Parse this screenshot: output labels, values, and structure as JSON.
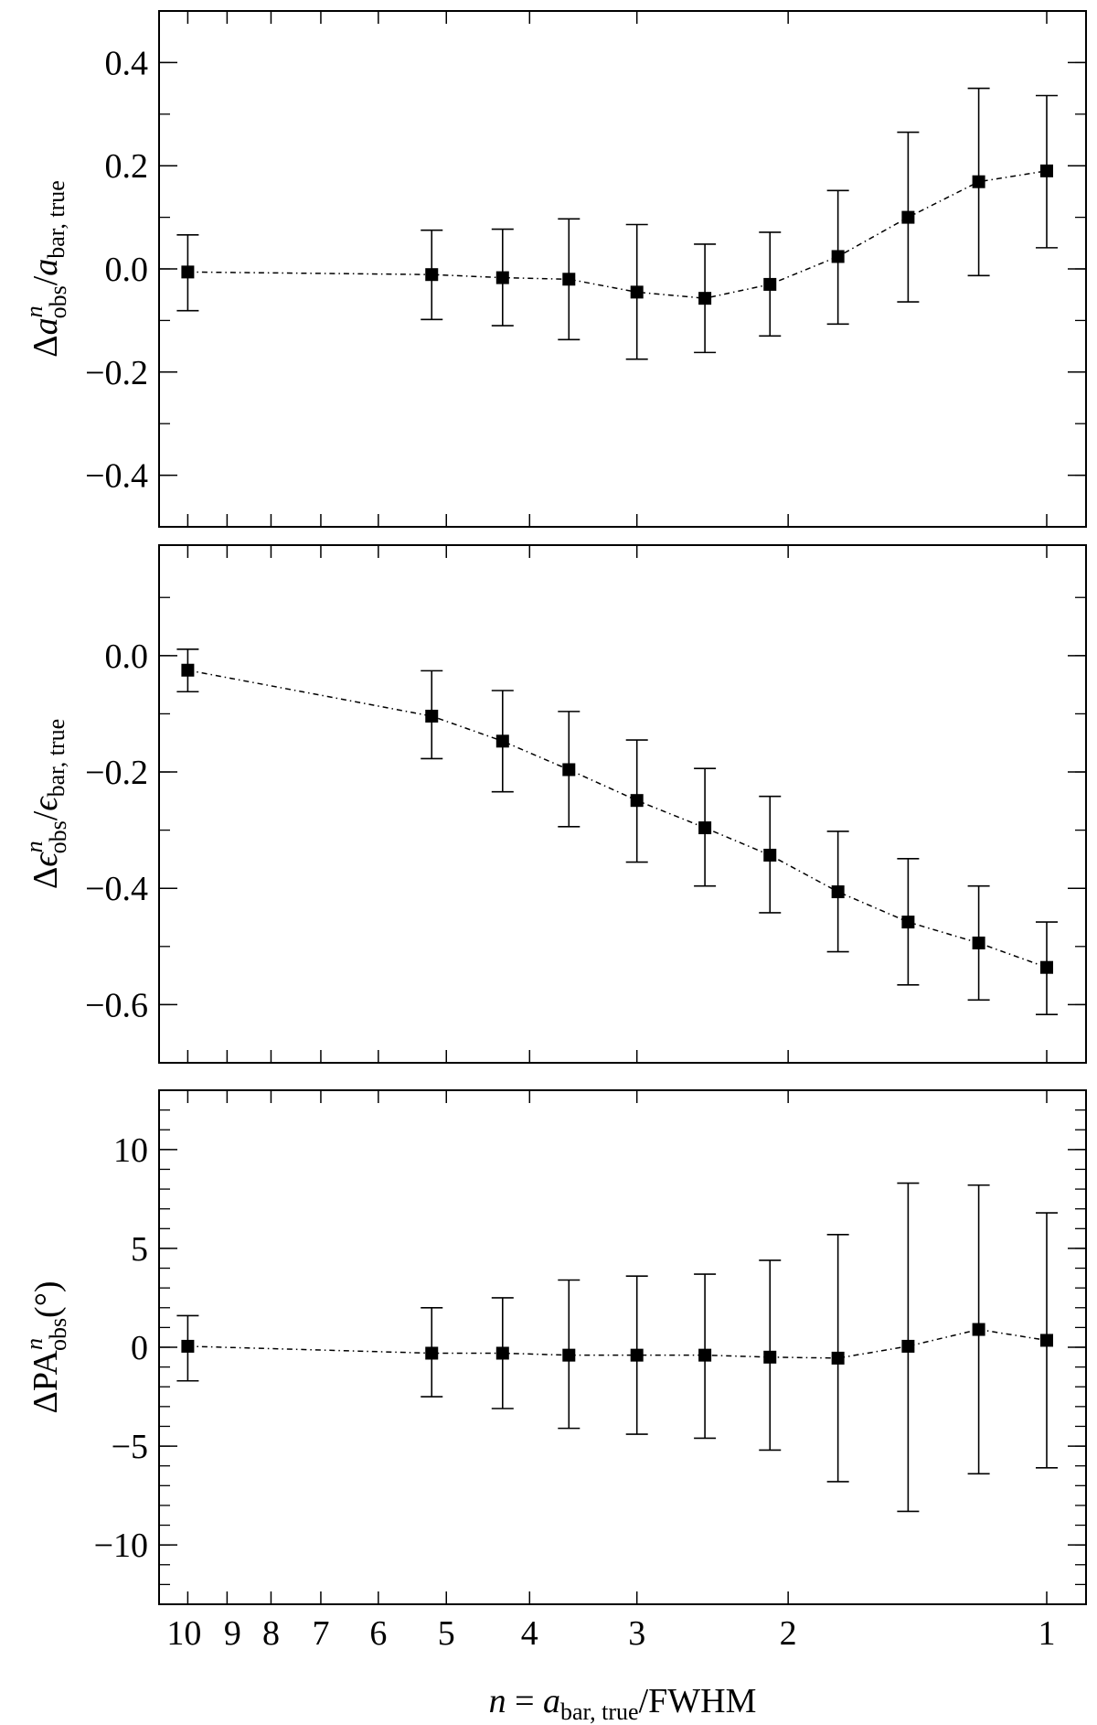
{
  "chart_data": [
    {
      "type": "scatter",
      "xscale": "log",
      "xreversed": true,
      "xlim": [
        10.8,
        0.9
      ],
      "ylabel": {
        "main": "Δ",
        "var": "a",
        "sup": "n",
        "sub": "obs",
        "sep": "/",
        "var2": "a",
        "sub2": "bar, true"
      },
      "ylim": [
        -0.5,
        0.5
      ],
      "yticks": [
        "0.4",
        "0.2",
        "0.0",
        "−0.2",
        "−0.4"
      ],
      "ytick_values": [
        0.4,
        0.2,
        0.0,
        -0.2,
        -0.4
      ],
      "yminor_step": 0.1,
      "x": [
        10,
        5.2,
        4.3,
        3.6,
        3.0,
        2.5,
        2.1,
        1.75,
        1.45,
        1.2,
        1.0
      ],
      "y": [
        -0.006,
        -0.011,
        -0.017,
        -0.02,
        -0.045,
        -0.057,
        -0.03,
        0.024,
        0.1,
        0.169,
        0.19
      ],
      "err_high": [
        0.066,
        0.075,
        0.077,
        0.097,
        0.086,
        0.048,
        0.071,
        0.152,
        0.265,
        0.35,
        0.336
      ],
      "err_low": [
        -0.081,
        -0.098,
        -0.11,
        -0.137,
        -0.175,
        -0.162,
        -0.13,
        -0.107,
        -0.064,
        -0.013,
        0.041
      ],
      "marker": "square",
      "line_style": "dash-dot",
      "color": "#000000"
    },
    {
      "type": "scatter",
      "xscale": "log",
      "xreversed": true,
      "xlim": [
        10.8,
        0.9
      ],
      "ylabel": {
        "main": "Δ",
        "var": "ϵ",
        "sup": "n",
        "sub": "obs",
        "sep": "/",
        "var2": "ϵ",
        "sub2": "bar, true"
      },
      "ylim": [
        -0.7,
        0.19
      ],
      "yticks": [
        "0.0",
        "−0.2",
        "−0.4",
        "−0.6"
      ],
      "ytick_values": [
        0.0,
        -0.2,
        -0.4,
        -0.6
      ],
      "yminor_step": 0.1,
      "x": [
        10,
        5.2,
        4.3,
        3.6,
        3.0,
        2.5,
        2.1,
        1.75,
        1.45,
        1.2,
        1.0
      ],
      "y": [
        -0.025,
        -0.104,
        -0.147,
        -0.196,
        -0.249,
        -0.296,
        -0.343,
        -0.406,
        -0.458,
        -0.494,
        -0.536
      ],
      "err_high": [
        0.011,
        -0.026,
        -0.06,
        -0.096,
        -0.145,
        -0.194,
        -0.242,
        -0.302,
        -0.349,
        -0.396,
        -0.458
      ],
      "err_low": [
        -0.062,
        -0.177,
        -0.234,
        -0.294,
        -0.355,
        -0.396,
        -0.442,
        -0.509,
        -0.566,
        -0.592,
        -0.617
      ],
      "marker": "square",
      "line_style": "dash-dot",
      "color": "#000000"
    },
    {
      "type": "scatter",
      "xscale": "log",
      "xreversed": true,
      "xlim": [
        10.8,
        0.9
      ],
      "ylabel": {
        "main": "ΔPA",
        "var": "",
        "sup": "n",
        "sub": "obs",
        "sep": "",
        "var2": "",
        "sub2": "",
        "suffix": "(°)"
      },
      "ylim": [
        -13,
        13
      ],
      "yticks": [
        "10",
        "5",
        "0",
        "−5",
        "−10"
      ],
      "ytick_values": [
        10,
        5,
        0,
        -5,
        -10
      ],
      "yminor_step": 1,
      "x": [
        10,
        5.2,
        4.3,
        3.6,
        3.0,
        2.5,
        2.1,
        1.75,
        1.45,
        1.2,
        1.0
      ],
      "y": [
        0.05,
        -0.3,
        -0.3,
        -0.4,
        -0.4,
        -0.4,
        -0.5,
        -0.55,
        0.05,
        0.9,
        0.35
      ],
      "err_high": [
        1.6,
        2.0,
        2.5,
        3.4,
        3.6,
        3.7,
        4.4,
        5.7,
        8.3,
        8.2,
        6.8
      ],
      "err_low": [
        -1.7,
        -2.5,
        -3.1,
        -4.1,
        -4.4,
        -4.6,
        -5.2,
        -6.8,
        -8.3,
        -6.4,
        -6.1
      ],
      "marker": "square",
      "line_style": "dash-dot",
      "color": "#000000"
    }
  ],
  "xaxis": {
    "tick_labels": [
      "10",
      "9",
      "8",
      "7",
      "6",
      "5",
      "4",
      "3",
      "2",
      "1"
    ],
    "tick_values": [
      10,
      9,
      8,
      7,
      6,
      5,
      4,
      3,
      2,
      1
    ],
    "label": {
      "var": "n",
      "eq": " = ",
      "var2": "a",
      "sub": "bar, true",
      "rest": "/FWHM"
    }
  }
}
